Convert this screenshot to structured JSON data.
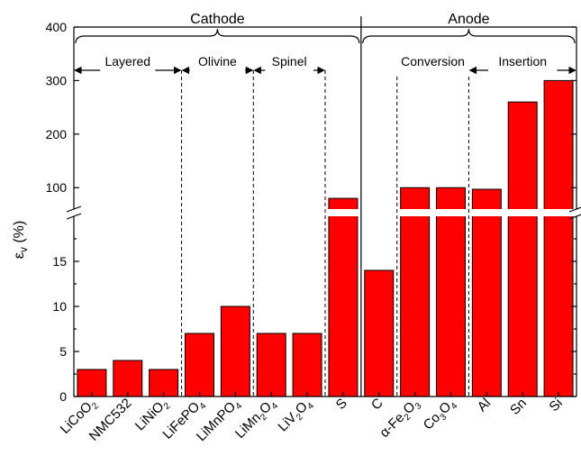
{
  "chart_data": {
    "type": "bar",
    "ylabel": "εv (%)",
    "categories": [
      {
        "base": "LiCoO",
        "sub": "2"
      },
      {
        "base": "NMC532",
        "sub": ""
      },
      {
        "base": "LiNiO",
        "sub": "2"
      },
      {
        "base": "LiFePO",
        "sub": "4"
      },
      {
        "base": "LiMnPO",
        "sub": "4"
      },
      {
        "base": "LiMn",
        "sub": "2",
        "base2": "O",
        "sub2": "4"
      },
      {
        "base": "LiV",
        "sub": "2",
        "base2": "O",
        "sub2": "4"
      },
      {
        "base": "S",
        "sub": ""
      },
      {
        "base": "C",
        "sub": ""
      },
      {
        "base": "α-Fe",
        "sub": "2",
        "base2": "O",
        "sub2": "3"
      },
      {
        "base": "Co",
        "sub": "3",
        "base2": "O",
        "sub2": "4"
      },
      {
        "base": "Al",
        "sub": ""
      },
      {
        "base": "Sn",
        "sub": ""
      },
      {
        "base": "Si",
        "sub": ""
      }
    ],
    "values": [
      3,
      4,
      3,
      7,
      10,
      7,
      7,
      80,
      14,
      100,
      100,
      97,
      260,
      300
    ],
    "bar_color": "#ff0000",
    "y_axis_broken": true,
    "ylim_lower": [
      0,
      20
    ],
    "ylim_upper": [
      60,
      400
    ],
    "yticks_lower": [
      "0",
      "5",
      "10",
      "15"
    ],
    "yticks_upper": [
      "100",
      "200",
      "300",
      "400"
    ],
    "groups": [
      {
        "label": "Cathode",
        "from": 0,
        "to": 7
      },
      {
        "label": "Anode",
        "from": 8,
        "to": 13
      }
    ],
    "subgroups": [
      {
        "label": "Layered",
        "from": 0,
        "to": 2
      },
      {
        "label": "Olivine",
        "from": 3,
        "to": 4
      },
      {
        "label": "Spinel",
        "from": 5,
        "to": 6
      },
      {
        "label": "Conversion",
        "from": 9,
        "to": 10
      },
      {
        "label": "Insertion",
        "from": 11,
        "to": 13
      }
    ]
  }
}
